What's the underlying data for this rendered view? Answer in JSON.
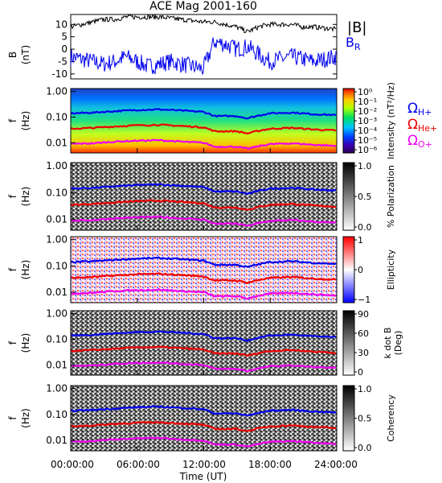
{
  "title": "ACE Mag 2001-160",
  "xlabel": "Time (UT)",
  "x_ticks": [
    "00:00:00",
    "06:00:00",
    "12:00:00",
    "18:00:00",
    "24:00:00"
  ],
  "freq_ticks": [
    "1.00",
    "0.10",
    "0.01"
  ],
  "panel1": {
    "ylabel_1": "B",
    "ylabel_2": "(nT)",
    "y_ticks": [
      "10",
      "5",
      "0",
      "-5",
      "-10"
    ],
    "legend_b": "|B|",
    "legend_br": "B",
    "legend_br_sub": "R",
    "color_b": "#000000",
    "color_br": "#0000ee"
  },
  "freq_ylabel_1": "f",
  "freq_ylabel_2": "(Hz)",
  "gyro_legend": [
    {
      "symbol": "Ω",
      "sub": "H+",
      "color": "#0000ee"
    },
    {
      "symbol": "Ω",
      "sub": "He+",
      "color": "#ee0000"
    },
    {
      "symbol": "Ω",
      "sub": "O+",
      "color": "#ee00ee"
    }
  ],
  "spectral_panels": [
    {
      "name": "intensity",
      "colorbar": "rainbow",
      "cb_ticks": [
        "10⁰",
        "10⁻¹",
        "10⁻²",
        "10⁻³",
        "10⁻⁴",
        "10⁻⁵",
        "10⁻⁶"
      ],
      "cb_label": "Intensity (nT²/Hz)"
    },
    {
      "name": "polarization",
      "colorbar": "gray",
      "cb_ticks": [
        "1.0",
        "0.5",
        "0.0"
      ],
      "cb_label": "% Polarization"
    },
    {
      "name": "ellipticity",
      "colorbar": "bwr",
      "cb_ticks": [
        "1",
        "0",
        "−1"
      ],
      "cb_label": "Ellipticity"
    },
    {
      "name": "k-dot-b",
      "colorbar": "gray",
      "cb_ticks": [
        "90",
        "60",
        "30",
        "0"
      ],
      "cb_label_1": "k dot B",
      "cb_label_2": "(Deg)"
    },
    {
      "name": "coherency",
      "colorbar": "gray",
      "cb_ticks": [
        "1.0",
        "0.5",
        "0.0"
      ],
      "cb_label": "Coherency"
    }
  ],
  "chart_data": {
    "type": "line",
    "x_unit": "hours UT",
    "xlim": [
      0,
      24
    ],
    "series": [
      {
        "name": "|B|",
        "x": [
          0,
          1,
          2,
          3,
          4,
          5,
          6,
          7,
          8,
          9,
          10,
          11,
          12,
          13,
          14,
          15,
          16,
          17,
          18,
          19,
          20,
          21,
          22,
          23,
          24
        ],
        "values": [
          9,
          10,
          11,
          12,
          12,
          13,
          13,
          13,
          13,
          12.5,
          12,
          11.5,
          11,
          11,
          10,
          9,
          7,
          9,
          10,
          10,
          10,
          9,
          9,
          8.5,
          8
        ]
      },
      {
        "name": "B_R",
        "x": [
          0,
          1,
          2,
          3,
          4,
          5,
          6,
          7,
          8,
          9,
          10,
          11,
          12,
          13,
          14,
          15,
          16,
          17,
          18,
          19,
          20,
          21,
          22,
          23,
          24
        ],
        "values": [
          -3,
          -4,
          -5,
          -6,
          -5,
          -3,
          -5,
          -7,
          -6,
          -5,
          -6,
          -7,
          -8,
          3,
          2,
          0,
          1,
          -2,
          -5,
          -4,
          -3,
          -4,
          -5,
          -4,
          -3
        ]
      },
      {
        "name": "Ω_H+ (Hz)",
        "x": [
          0,
          2,
          4,
          6,
          8,
          10,
          12,
          13,
          15,
          16,
          18,
          20,
          22,
          24
        ],
        "values": [
          0.14,
          0.15,
          0.17,
          0.19,
          0.2,
          0.18,
          0.16,
          0.11,
          0.11,
          0.09,
          0.14,
          0.15,
          0.13,
          0.12
        ]
      },
      {
        "name": "Ω_He+ (Hz)",
        "x": [
          0,
          2,
          4,
          6,
          8,
          10,
          12,
          13,
          15,
          16,
          18,
          20,
          22,
          24
        ],
        "values": [
          0.035,
          0.038,
          0.043,
          0.048,
          0.05,
          0.045,
          0.04,
          0.028,
          0.028,
          0.023,
          0.035,
          0.038,
          0.033,
          0.03
        ]
      },
      {
        "name": "Ω_O+ (Hz)",
        "x": [
          0,
          2,
          4,
          6,
          8,
          10,
          12,
          13,
          15,
          16,
          18,
          20,
          22,
          24
        ],
        "values": [
          0.009,
          0.0095,
          0.011,
          0.012,
          0.0125,
          0.011,
          0.01,
          0.007,
          0.007,
          0.0058,
          0.0088,
          0.0095,
          0.0083,
          0.0075
        ]
      }
    ],
    "panel1_ylim": [
      -12,
      14
    ],
    "freq_ylim_hz": [
      0.004,
      1.3
    ],
    "freq_scale": "log"
  }
}
